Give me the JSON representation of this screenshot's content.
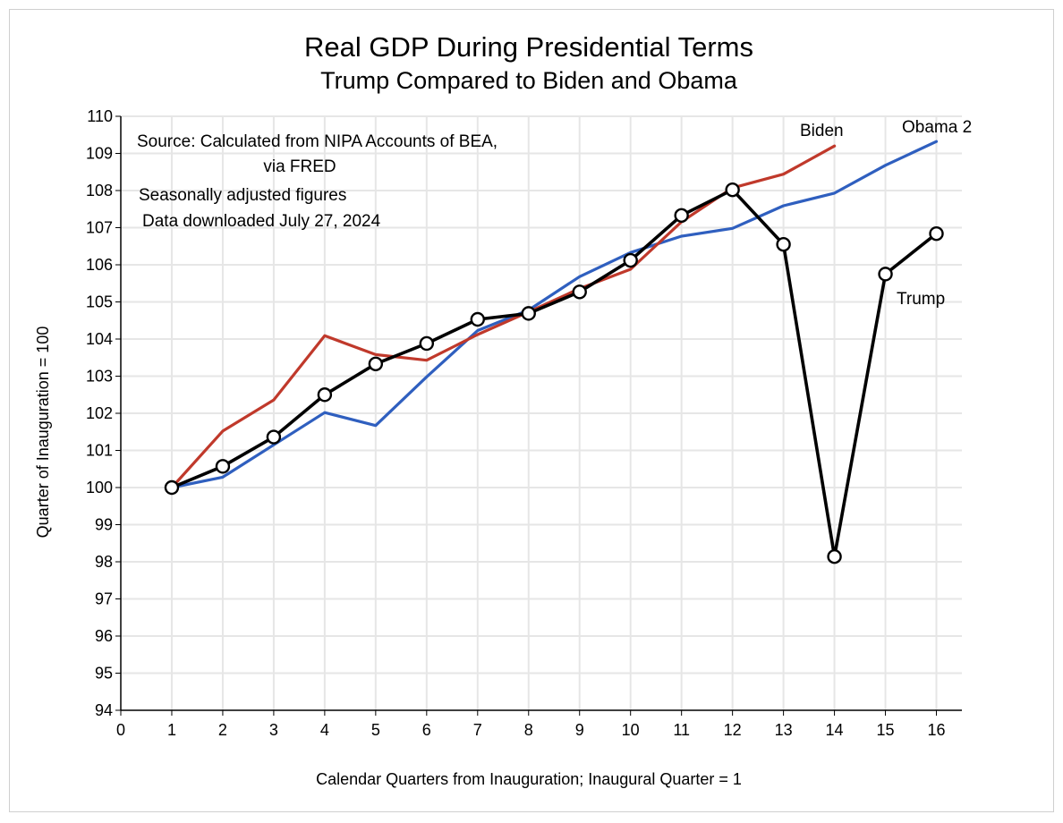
{
  "chart_data": {
    "type": "line",
    "title": "Real GDP During Presidential Terms",
    "subtitle": "Trump Compared to Biden and Obama",
    "xlabel": "Calendar Quarters from Inauguration; Inaugural Quarter = 1",
    "ylabel": "Quarter of Inauguration = 100",
    "xlim": [
      0,
      16.5
    ],
    "ylim": [
      94,
      110
    ],
    "x_ticks": [
      0,
      1,
      2,
      3,
      4,
      5,
      6,
      7,
      8,
      9,
      10,
      11,
      12,
      13,
      14,
      15,
      16
    ],
    "y_ticks": [
      94,
      95,
      96,
      97,
      98,
      99,
      100,
      101,
      102,
      103,
      104,
      105,
      106,
      107,
      108,
      109,
      110
    ],
    "grid": true,
    "annotations": [
      "Source:  Calculated from NIPA Accounts of BEA,",
      "via FRED",
      "Seasonally adjusted figures",
      "Data downloaded July 27, 2024"
    ],
    "series": [
      {
        "name": "Obama 2",
        "color": "#2f5fbf",
        "markers": false,
        "x": [
          1,
          2,
          3,
          4,
          5,
          6,
          7,
          8,
          9,
          10,
          11,
          12,
          13,
          14,
          15,
          16
        ],
        "values": [
          100.0,
          100.28,
          101.15,
          102.02,
          101.67,
          102.98,
          104.23,
          104.78,
          105.68,
          106.33,
          106.77,
          106.98,
          107.59,
          107.93,
          108.68,
          109.32
        ]
      },
      {
        "name": "Biden",
        "color": "#c0392b",
        "markers": false,
        "x": [
          1,
          2,
          3,
          4,
          5,
          6,
          7,
          8,
          9,
          10,
          11,
          12,
          13,
          14
        ],
        "values": [
          100.0,
          101.52,
          102.36,
          104.09,
          103.58,
          103.43,
          104.12,
          104.73,
          105.36,
          105.88,
          107.16,
          108.07,
          108.44,
          109.2
        ]
      },
      {
        "name": "Trump",
        "color": "#000000",
        "markers": true,
        "x": [
          1,
          2,
          3,
          4,
          5,
          6,
          7,
          8,
          9,
          10,
          11,
          12,
          13,
          14,
          15,
          16
        ],
        "values": [
          100.0,
          100.57,
          101.36,
          102.5,
          103.33,
          103.88,
          104.53,
          104.69,
          105.27,
          106.12,
          107.33,
          108.02,
          106.55,
          98.14,
          105.75,
          106.84
        ]
      }
    ]
  }
}
